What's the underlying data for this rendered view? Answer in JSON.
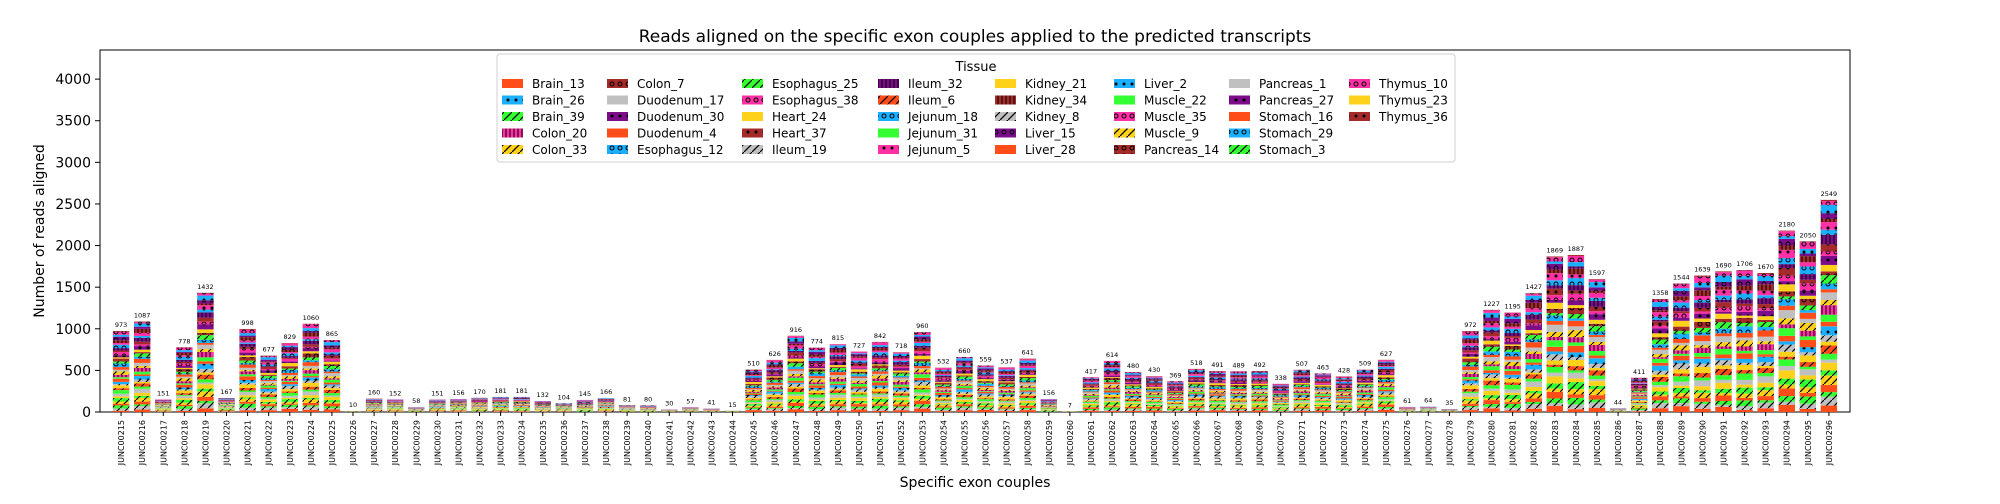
{
  "chart_data": {
    "type": "bar",
    "stacked": true,
    "title": "Reads aligned on the specific exon couples applied to the predicted transcripts",
    "xlabel": "Specific exon couples",
    "ylabel": "Number of reads aligned",
    "ylim": [
      0,
      4350
    ],
    "yticks": [
      0,
      500,
      1000,
      1500,
      2000,
      2500,
      3000,
      3500,
      4000
    ],
    "legend": {
      "title": "Tissue",
      "placement": "top-center",
      "ncol": 8,
      "entries": [
        {
          "name": "Brain_13",
          "color": "#ff4d1a",
          "hatch": ""
        },
        {
          "name": "Brain_26",
          "color": "#1ab0ff",
          "hatch": "dot"
        },
        {
          "name": "Brain_39",
          "color": "#33ff33",
          "hatch": "slash"
        },
        {
          "name": "Colon_20",
          "color": "#ff2fa6",
          "hatch": "bar"
        },
        {
          "name": "Colon_33",
          "color": "#ffd11a",
          "hatch": "slash"
        },
        {
          "name": "Colon_7",
          "color": "#a52a2a",
          "hatch": "ring"
        },
        {
          "name": "Duodenum_17",
          "color": "#c0c0c0",
          "hatch": ""
        },
        {
          "name": "Duodenum_30",
          "color": "#7b0d8a",
          "hatch": "dot"
        },
        {
          "name": "Duodenum_4",
          "color": "#ff4d1a",
          "hatch": ""
        },
        {
          "name": "Esophagus_12",
          "color": "#1ab0ff",
          "hatch": "ring"
        },
        {
          "name": "Esophagus_25",
          "color": "#33ff33",
          "hatch": "slash"
        },
        {
          "name": "Esophagus_38",
          "color": "#ff2fa6",
          "hatch": "ring"
        },
        {
          "name": "Heart_24",
          "color": "#ffd11a",
          "hatch": ""
        },
        {
          "name": "Heart_37",
          "color": "#a52a2a",
          "hatch": "dot"
        },
        {
          "name": "Ileum_19",
          "color": "#c0c0c0",
          "hatch": "slash"
        },
        {
          "name": "Ileum_32",
          "color": "#7b0d8a",
          "hatch": "bar"
        },
        {
          "name": "Ileum_6",
          "color": "#ff4d1a",
          "hatch": "slash"
        },
        {
          "name": "Jejunum_18",
          "color": "#1ab0ff",
          "hatch": "ring"
        },
        {
          "name": "Jejunum_31",
          "color": "#33ff33",
          "hatch": ""
        },
        {
          "name": "Jejunum_5",
          "color": "#ff2fa6",
          "hatch": "dot"
        },
        {
          "name": "Kidney_21",
          "color": "#ffd11a",
          "hatch": ""
        },
        {
          "name": "Kidney_34",
          "color": "#a52a2a",
          "hatch": "bar"
        },
        {
          "name": "Kidney_8",
          "color": "#c0c0c0",
          "hatch": "slash"
        },
        {
          "name": "Liver_15",
          "color": "#7b0d8a",
          "hatch": "ring"
        },
        {
          "name": "Liver_28",
          "color": "#ff4d1a",
          "hatch": ""
        },
        {
          "name": "Liver_2",
          "color": "#1ab0ff",
          "hatch": "dot"
        },
        {
          "name": "Muscle_22",
          "color": "#33ff33",
          "hatch": ""
        },
        {
          "name": "Muscle_35",
          "color": "#ff2fa6",
          "hatch": "ring"
        },
        {
          "name": "Muscle_9",
          "color": "#ffd11a",
          "hatch": "slash"
        },
        {
          "name": "Pancreas_14",
          "color": "#a52a2a",
          "hatch": "ring"
        },
        {
          "name": "Pancreas_1",
          "color": "#c0c0c0",
          "hatch": ""
        },
        {
          "name": "Pancreas_27",
          "color": "#7b0d8a",
          "hatch": "dot"
        },
        {
          "name": "Stomach_16",
          "color": "#ff4d1a",
          "hatch": ""
        },
        {
          "name": "Stomach_29",
          "color": "#1ab0ff",
          "hatch": "ring"
        },
        {
          "name": "Stomach_3",
          "color": "#33ff33",
          "hatch": "slash"
        },
        {
          "name": "Thymus_10",
          "color": "#ff2fa6",
          "hatch": "ring"
        },
        {
          "name": "Thymus_23",
          "color": "#ffd11a",
          "hatch": ""
        },
        {
          "name": "Thymus_36",
          "color": "#a52a2a",
          "hatch": "dot"
        }
      ]
    },
    "categories": [
      "JUNC00215",
      "JUNC00216",
      "JUNC00217",
      "JUNC00218",
      "JUNC00219",
      "JUNC00220",
      "JUNC00221",
      "JUNC00222",
      "JUNC00223",
      "JUNC00224",
      "JUNC00225",
      "JUNC00226",
      "JUNC00227",
      "JUNC00228",
      "JUNC00229",
      "JUNC00230",
      "JUNC00231",
      "JUNC00232",
      "JUNC00233",
      "JUNC00234",
      "JUNC00235",
      "JUNC00236",
      "JUNC00237",
      "JUNC00238",
      "JUNC00239",
      "JUNC00240",
      "JUNC00241",
      "JUNC00242",
      "JUNC00243",
      "JUNC00244",
      "JUNC00245",
      "JUNC00246",
      "JUNC00247",
      "JUNC00248",
      "JUNC00249",
      "JUNC00250",
      "JUNC00251",
      "JUNC00252",
      "JUNC00253",
      "JUNC00254",
      "JUNC00255",
      "JUNC00256",
      "JUNC00257",
      "JUNC00258",
      "JUNC00259",
      "JUNC00260",
      "JUNC00261",
      "JUNC00262",
      "JUNC00263",
      "JUNC00264",
      "JUNC00265",
      "JUNC00266",
      "JUNC00267",
      "JUNC00268",
      "JUNC00269",
      "JUNC00270",
      "JUNC00271",
      "JUNC00272",
      "JUNC00273",
      "JUNC00274",
      "JUNC00275",
      "JUNC00276",
      "JUNC00277",
      "JUNC00278",
      "JUNC00279",
      "JUNC00280",
      "JUNC00281",
      "JUNC00282",
      "JUNC00283",
      "JUNC00284",
      "JUNC00285",
      "JUNC00286",
      "JUNC00287",
      "JUNC00288",
      "JUNC00289",
      "JUNC00290",
      "JUNC00291",
      "JUNC00292",
      "JUNC00293",
      "JUNC00294",
      "JUNC00295",
      "JUNC00296"
    ],
    "totals": [
      973,
      1087,
      151,
      778,
      1432,
      167,
      998,
      677,
      829,
      1060,
      865,
      10,
      160,
      152,
      58,
      151,
      156,
      170,
      181,
      181,
      132,
      104,
      145,
      166,
      81,
      80,
      30,
      57,
      41,
      15,
      510,
      626,
      916,
      774,
      815,
      727,
      842,
      718,
      960,
      532,
      660,
      559,
      537,
      641,
      156,
      7,
      417,
      614,
      480,
      430,
      369,
      518,
      491,
      489,
      492,
      338,
      507,
      463,
      428,
      509,
      627,
      61,
      64,
      35,
      972,
      1227,
      1195,
      1427,
      1869,
      1887,
      1597,
      44,
      411,
      1358,
      1544,
      1639,
      1690,
      1706,
      1670,
      2180,
      2050,
      2549
    ]
  }
}
